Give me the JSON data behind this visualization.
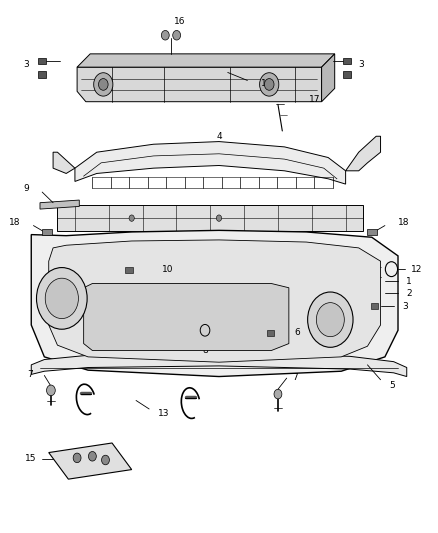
{
  "bg_color": "#ffffff",
  "line_color": "#000000",
  "figsize": [
    4.38,
    5.33
  ],
  "dpi": 100
}
